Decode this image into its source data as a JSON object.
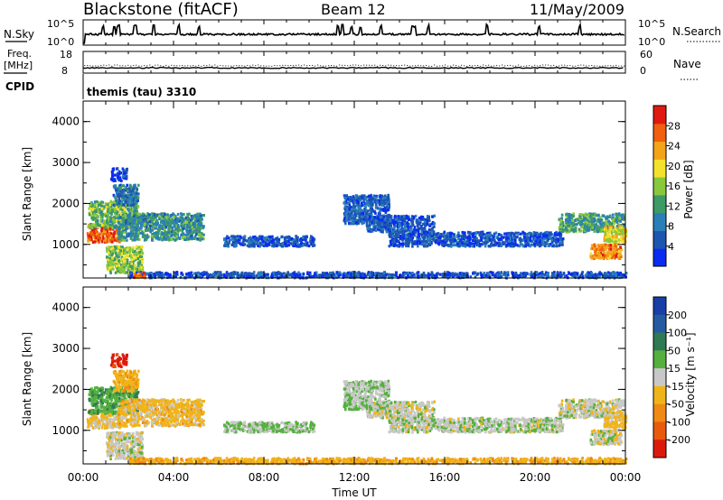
{
  "chart_data": {
    "type": "heatmap",
    "header": {
      "station": "Blackstone (fitACF)",
      "beam": "Beam 12",
      "date": "11/May/2009"
    },
    "time_axis": {
      "label": "Time UT",
      "ticks": [
        "00:00",
        "04:00",
        "08:00",
        "12:00",
        "16:00",
        "20:00",
        "00:00"
      ],
      "tick_hours": [
        0,
        4,
        8,
        12,
        16,
        20,
        24
      ],
      "range_hours": [
        0,
        24
      ]
    },
    "noise_panel": {
      "left_label": "N.Sky",
      "left_ticks": [
        "10^5",
        "10^0"
      ],
      "right_label": "N.Search",
      "right_ticks": [
        "10^5",
        "10^0"
      ],
      "scale": "log",
      "spike_hours": [
        0.9,
        1.4,
        1.55,
        1.6,
        2.3,
        3.1,
        4.2,
        5.1,
        11.3,
        11.5,
        11.9,
        12.3,
        13.2,
        14.6,
        14.7,
        15.3,
        17.9,
        20.2,
        22.0
      ]
    },
    "freq_panel": {
      "left_label": "Freq. [MHz]",
      "left_ticks": [
        "18",
        "8"
      ],
      "left_range": [
        8,
        18
      ],
      "right_label": "Nave",
      "right_ticks": [
        "60",
        "0"
      ],
      "right_range": [
        0,
        60
      ],
      "freq_mhz": 10.4,
      "nave": 22,
      "cpid_label": "CPID",
      "cpid_value": "themis (tau) 3310"
    },
    "range_axis": {
      "label": "Slant Range [km]",
      "ticks": [
        1000,
        2000,
        3000,
        4000
      ],
      "range_km": [
        180,
        4500
      ]
    },
    "power_scale": {
      "label": "Power [dB]",
      "range": [
        0,
        32
      ],
      "ticks": [
        4,
        8,
        12,
        16,
        20,
        24,
        28
      ],
      "colors": [
        "#0a2cf0",
        "#1d56b0",
        "#2a7fb8",
        "#3e9a66",
        "#88c83c",
        "#f3e12c",
        "#f4a418",
        "#f0600e",
        "#e01a10"
      ]
    },
    "velocity_scale": {
      "label": "Velocity [m s⁻¹]",
      "range": [
        -250,
        250
      ],
      "tick_labels": [
        "200",
        "100",
        "50",
        "15",
        "-15",
        "-50",
        "-100",
        "-200"
      ],
      "colors": [
        "#1a3ea8",
        "#245aa0",
        "#2e7a52",
        "#55b040",
        "#c8c8c8",
        "#f0b41a",
        "#f08a14",
        "#ea5a0c",
        "#dc1a0c"
      ]
    },
    "scatter_regions": [
      {
        "id": "n1",
        "t0": 0.15,
        "t1": 1.6,
        "r0": 1050,
        "r1": 1500,
        "power_db": 27,
        "velocity": -20
      },
      {
        "id": "n2",
        "t0": 0.2,
        "t1": 2.4,
        "r0": 1400,
        "r1": 2050,
        "power_db": 14,
        "velocity": 40
      },
      {
        "id": "n3",
        "t0": 1.5,
        "t1": 5.3,
        "r0": 1100,
        "r1": 1750,
        "power_db": 11,
        "velocity": -30
      },
      {
        "id": "n4",
        "t0": 1.0,
        "t1": 2.6,
        "r0": 300,
        "r1": 950,
        "power_db": 16,
        "velocity": 0
      },
      {
        "id": "n5",
        "t0": 1.3,
        "t1": 2.4,
        "r0": 1950,
        "r1": 2450,
        "power_db": 8,
        "velocity": -40
      },
      {
        "id": "n6",
        "t0": 11.5,
        "t1": 13.5,
        "r0": 1500,
        "r1": 2200,
        "power_db": 6,
        "velocity": 10
      },
      {
        "id": "n7",
        "t0": 12.5,
        "t1": 15.5,
        "r0": 1300,
        "r1": 1700,
        "power_db": 5,
        "velocity": 0
      },
      {
        "id": "n8",
        "t0": 13.5,
        "t1": 21.2,
        "r0": 950,
        "r1": 1300,
        "power_db": 5,
        "velocity": 5
      },
      {
        "id": "n9",
        "t0": 21.0,
        "t1": 23.9,
        "r0": 1300,
        "r1": 1750,
        "power_db": 12,
        "velocity": 0
      },
      {
        "id": "n10",
        "t0": 22.4,
        "t1": 23.8,
        "r0": 650,
        "r1": 1000,
        "power_db": 25,
        "velocity": -5
      },
      {
        "id": "n11",
        "t0": 23.0,
        "t1": 24.0,
        "r0": 1050,
        "r1": 1450,
        "power_db": 20,
        "velocity": -20
      },
      {
        "id": "n12",
        "t0": 2.0,
        "t1": 24.0,
        "r0": 180,
        "r1": 320,
        "power_db": 5,
        "velocity": -40
      },
      {
        "id": "n13",
        "t0": 6.2,
        "t1": 10.2,
        "r0": 950,
        "r1": 1200,
        "power_db": 5,
        "velocity": 15
      },
      {
        "id": "n14",
        "t0": 2.2,
        "t1": 2.7,
        "r0": 180,
        "r1": 320,
        "power_db": 26,
        "velocity": -60
      },
      {
        "id": "n15",
        "t0": 1.2,
        "t1": 1.9,
        "r0": 2550,
        "r1": 2850,
        "power_db": 3,
        "velocity": -220
      }
    ]
  }
}
